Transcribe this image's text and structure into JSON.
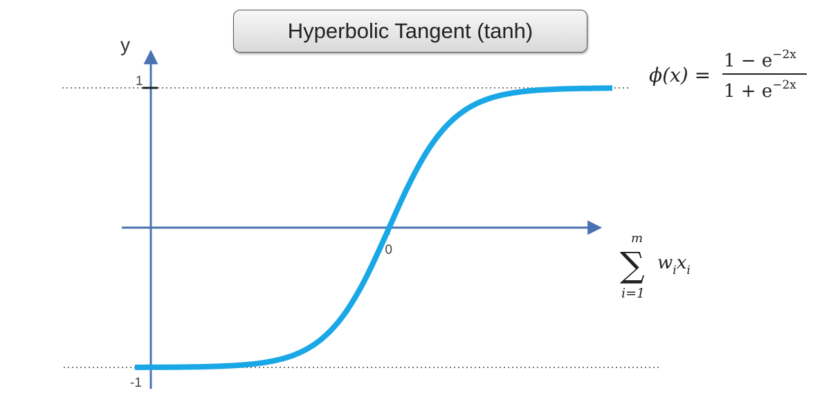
{
  "title": "Hyperbolic Tangent (tanh)",
  "formula": {
    "lhs": "ϕ(x) =",
    "numerator": "1 − e",
    "denominator": "1 + e",
    "exponent": "−2x"
  },
  "chart_data": {
    "type": "line",
    "function": "tanh",
    "ylabel": "y",
    "xlabel": {
      "symbol": "∑",
      "upper": "m",
      "lower": "i=1",
      "term": "w",
      "term_sub": "i",
      "var": "x",
      "var_sub": "i"
    },
    "ylim": [
      -1,
      1
    ],
    "xlim": [
      -4.1,
      3.6
    ],
    "x_tick_labels": [
      {
        "value": 0,
        "label": "0"
      }
    ],
    "y_tick_labels": [
      {
        "value": 1,
        "label": "1"
      },
      {
        "value": -1,
        "label": "-1"
      }
    ],
    "asymptotes": [
      1,
      -1
    ],
    "grid": false,
    "colors": {
      "curve": "#1aa7e6",
      "axis": "#4a72b0",
      "asymptote": "#777777"
    },
    "x": [
      -4,
      -3.5,
      -3,
      -2.5,
      -2,
      -1.5,
      -1,
      -0.5,
      0,
      0.5,
      1,
      1.5,
      2,
      2.5,
      3,
      3.5
    ],
    "values": [
      -0.999,
      -0.998,
      -0.995,
      -0.987,
      -0.964,
      -0.905,
      -0.762,
      -0.462,
      0,
      0.462,
      0.762,
      0.905,
      0.964,
      0.987,
      0.995,
      0.998
    ]
  }
}
